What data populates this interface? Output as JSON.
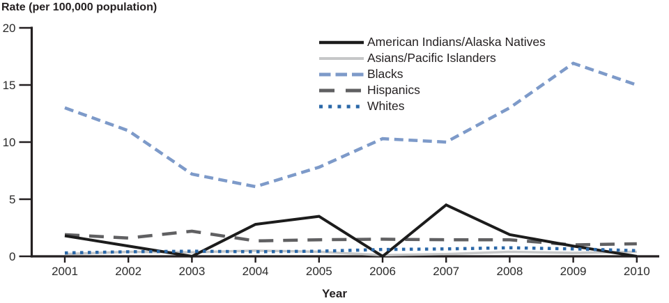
{
  "chart_data": {
    "type": "line",
    "title": "Rate (per 100,000 population)",
    "xlabel": "Year",
    "ylabel": "Rate (per 100,000 population)",
    "x": [
      2001,
      2002,
      2003,
      2004,
      2005,
      2006,
      2007,
      2008,
      2009,
      2010
    ],
    "ylim": [
      0,
      20
    ],
    "yticks": [
      0,
      5,
      10,
      15,
      20
    ],
    "grid": false,
    "legend_position": "top-center-inside",
    "axis_color": "#231f20",
    "series": [
      {
        "name": "American Indians/Alaska Natives",
        "color": "#1c1c1c",
        "style": "solid",
        "width": 4,
        "z": 3,
        "values": [
          1.8,
          0.9,
          0.0,
          2.8,
          3.5,
          0.0,
          4.5,
          1.9,
          0.9,
          0.0
        ]
      },
      {
        "name": "Asians/Pacific Islanders",
        "color": "#c6c7c8",
        "style": "solid",
        "width": 3.5,
        "z": 0,
        "values": [
          0.2,
          0.4,
          0.35,
          0.5,
          0.4,
          0.1,
          0.2,
          0.4,
          0.3,
          0.4
        ]
      },
      {
        "name": "Blacks",
        "color": "#7d9ac9",
        "style": "dashed",
        "width": 4.5,
        "z": 2,
        "values": [
          13.0,
          11.0,
          7.2,
          6.1,
          7.8,
          10.3,
          10.0,
          13.0,
          16.9,
          15.0
        ]
      },
      {
        "name": "Hispanics",
        "color": "#606062",
        "style": "longdash",
        "width": 4.5,
        "z": 1,
        "values": [
          1.9,
          1.6,
          2.2,
          1.35,
          1.45,
          1.5,
          1.45,
          1.45,
          1.0,
          1.1
        ]
      },
      {
        "name": "Whites",
        "color": "#2b68a8",
        "style": "dotted",
        "width": 4.5,
        "z": 4,
        "values": [
          0.3,
          0.4,
          0.45,
          0.4,
          0.45,
          0.6,
          0.65,
          0.75,
          0.65,
          0.5
        ]
      }
    ]
  }
}
